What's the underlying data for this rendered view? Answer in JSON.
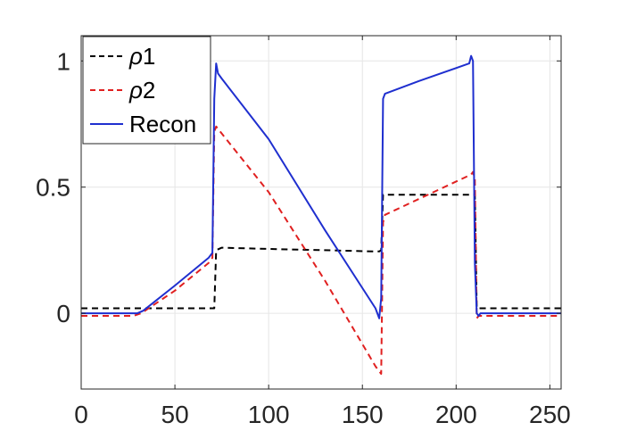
{
  "chart_data": {
    "type": "line",
    "xlim": [
      0,
      256
    ],
    "ylim": [
      -0.3,
      1.1
    ],
    "xticks": [
      0,
      50,
      100,
      150,
      200,
      250
    ],
    "yticks": [
      0,
      0.5,
      1
    ],
    "xtick_labels": [
      "0",
      "50",
      "100",
      "150",
      "200",
      "250"
    ],
    "ytick_labels": [
      "0",
      "0.5",
      "1"
    ],
    "grid": true,
    "legend_position": "top-left",
    "series": [
      {
        "name": "ρ1",
        "legend_main": "ρ",
        "legend_sub": "1",
        "color": "#000000",
        "style": "dashed",
        "x": [
          0,
          30,
          70,
          71,
          72,
          75,
          100,
          130,
          157,
          159,
          160,
          161,
          162,
          208,
          209,
          210,
          211,
          212,
          256
        ],
        "y": [
          0.02,
          0.02,
          0.02,
          0.02,
          0.25,
          0.26,
          0.255,
          0.25,
          0.245,
          0.245,
          0.25,
          0.47,
          0.47,
          0.47,
          0.47,
          0.47,
          0.02,
          0.02,
          0.02
        ]
      },
      {
        "name": "ρ2",
        "legend_main": "ρ",
        "legend_sub": "2",
        "color": "#e02020",
        "style": "dashed",
        "x": [
          0,
          28,
          32,
          50,
          68,
          70,
          71,
          72,
          100,
          130,
          157,
          159,
          160,
          161,
          162,
          208,
          209,
          210,
          211,
          212,
          256
        ],
        "y": [
          -0.01,
          -0.01,
          0.0,
          0.09,
          0.2,
          0.22,
          0.72,
          0.74,
          0.48,
          0.13,
          -0.21,
          -0.23,
          -0.24,
          0.36,
          0.39,
          0.55,
          0.56,
          0.53,
          -0.02,
          -0.01,
          -0.01
        ]
      },
      {
        "name": "Recon",
        "legend_main": "Recon",
        "legend_sub": "",
        "color": "#1f2fcf",
        "style": "solid",
        "x": [
          0,
          30,
          33,
          50,
          68,
          70,
          71,
          72,
          73,
          75,
          100,
          130,
          157,
          158,
          159,
          160,
          161,
          162,
          180,
          207,
          208,
          209,
          210,
          211,
          212,
          213,
          256
        ],
        "y": [
          0.0,
          0.0,
          0.01,
          0.11,
          0.22,
          0.24,
          0.85,
          0.99,
          0.95,
          0.93,
          0.69,
          0.33,
          0.02,
          0.0,
          -0.02,
          0.06,
          0.85,
          0.87,
          0.92,
          0.99,
          1.02,
          1.0,
          0.2,
          0.0,
          -0.01,
          0.0,
          0.0
        ]
      }
    ]
  }
}
